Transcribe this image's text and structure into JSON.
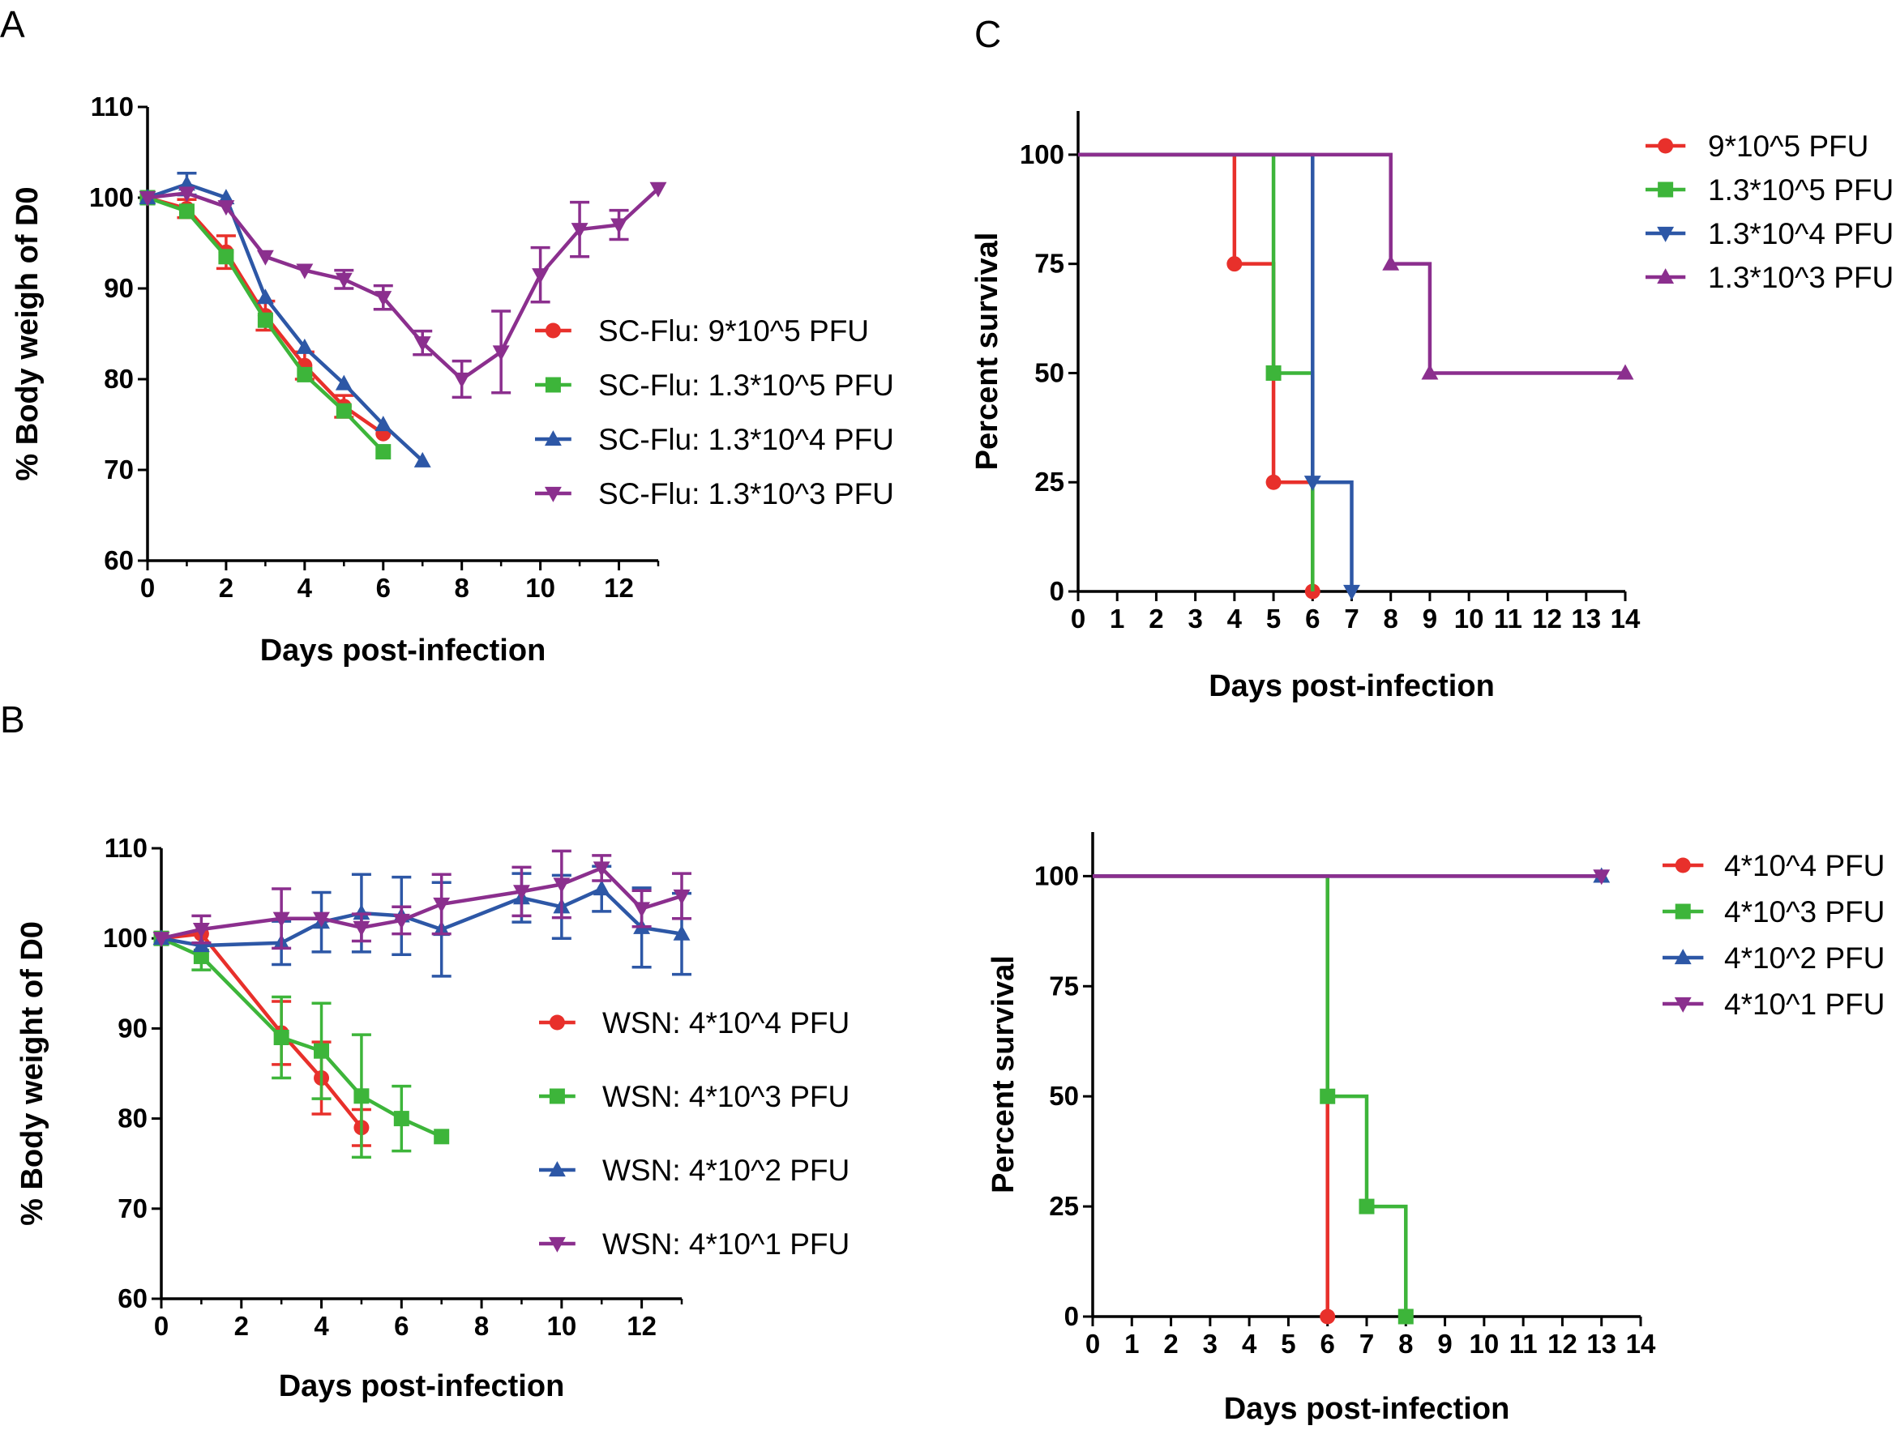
{
  "panel_letters": [
    "A",
    "B",
    "C"
  ],
  "chart_data": [
    {
      "type": "line",
      "xlabel": "Days post-infection",
      "ylabel": "% Body weigh of D0",
      "xlim": [
        0,
        13
      ],
      "ylim": [
        60,
        110
      ],
      "xticks": [
        0,
        2,
        4,
        6,
        8,
        10,
        12
      ],
      "yticks": [
        60,
        70,
        80,
        90,
        100,
        110
      ],
      "legend_position": "right",
      "series": [
        {
          "name": "SC-Flu:  9*10^5 PFU",
          "color": "#e8302b",
          "marker": "circle",
          "x": [
            0,
            1,
            2,
            3,
            4,
            5,
            6
          ],
          "y": [
            100,
            98.8,
            94,
            87,
            81.5,
            77,
            74
          ],
          "err": [
            0,
            1,
            1.8,
            1.6,
            1.5,
            1.2,
            0
          ]
        },
        {
          "name": "SC-Flu:  1.3*10^5 PFU",
          "color": "#3db53a",
          "marker": "square",
          "x": [
            0,
            1,
            2,
            3,
            4,
            5,
            6
          ],
          "y": [
            100,
            98.5,
            93.5,
            86.5,
            80.5,
            76.5,
            72
          ],
          "err": [
            0,
            0,
            0,
            0,
            0,
            0,
            0
          ]
        },
        {
          "name": "SC-Flu:  1.3*10^4 PFU",
          "color": "#2d57a6",
          "marker": "triangle-up",
          "x": [
            0,
            1,
            2,
            3,
            4,
            5,
            6,
            7
          ],
          "y": [
            100,
            101.5,
            100,
            89,
            83.5,
            79.5,
            75,
            71
          ],
          "err": [
            0,
            1.2,
            0,
            0,
            0,
            0,
            0,
            0
          ]
        },
        {
          "name": "SC-Flu:  1.3*10^3 PFU",
          "color": "#8b2f8e",
          "marker": "triangle-down",
          "x": [
            0,
            1,
            2,
            3,
            4,
            5,
            6,
            7,
            8,
            9,
            10,
            11,
            12,
            13
          ],
          "y": [
            100,
            100.5,
            99,
            93.5,
            92,
            91,
            89,
            84,
            80,
            83,
            91.5,
            96.5,
            97,
            101
          ],
          "err": [
            0,
            0,
            0,
            0,
            0,
            1,
            1.3,
            1.3,
            2,
            4.5,
            3,
            3,
            1.6,
            0
          ]
        }
      ]
    },
    {
      "type": "line",
      "xlabel": "Days post-infection",
      "ylabel": "% Body weight of D0",
      "xlim": [
        0,
        13
      ],
      "ylim": [
        60,
        110
      ],
      "xticks": [
        0,
        2,
        4,
        6,
        8,
        10,
        12
      ],
      "yticks": [
        60,
        70,
        80,
        90,
        100,
        110
      ],
      "legend_position": "right",
      "series": [
        {
          "name": "WSN: 4*10^4 PFU",
          "color": "#e8302b",
          "marker": "circle",
          "x": [
            0,
            1,
            3,
            4,
            5
          ],
          "y": [
            100,
            100.5,
            89.5,
            84.5,
            79
          ],
          "err": [
            0,
            0,
            3.5,
            4,
            2
          ]
        },
        {
          "name": "WSN: 4*10^3 PFU",
          "color": "#3db53a",
          "marker": "square",
          "x": [
            0,
            1,
            3,
            4,
            5,
            6,
            7
          ],
          "y": [
            100,
            98,
            89,
            87.5,
            82.5,
            80,
            78
          ],
          "err": [
            0,
            1.5,
            4.5,
            5.3,
            6.8,
            3.6,
            0
          ]
        },
        {
          "name": "WSN: 4*10^2 PFU",
          "color": "#2d57a6",
          "marker": "triangle-up",
          "x": [
            0,
            1,
            3,
            4,
            5,
            6,
            7,
            9,
            10,
            11,
            12,
            13
          ],
          "y": [
            100,
            99.2,
            99.5,
            101.8,
            102.8,
            102.5,
            101,
            104.5,
            103.5,
            105.5,
            101.2,
            100.5
          ],
          "err": [
            0,
            0,
            2.4,
            3.3,
            4.3,
            4.3,
            5.2,
            2.7,
            3.5,
            2.5,
            4.4,
            4.5
          ]
        },
        {
          "name": "WSN: 4*10^1 PFU",
          "color": "#8b2f8e",
          "marker": "triangle-down",
          "x": [
            0,
            1,
            3,
            4,
            5,
            6,
            7,
            9,
            10,
            11,
            12,
            13
          ],
          "y": [
            100,
            101,
            102.2,
            102.2,
            101.2,
            102,
            103.8,
            105.2,
            106,
            107.8,
            103.3,
            104.7
          ],
          "err": [
            0,
            1.5,
            3.3,
            0,
            1.5,
            1.5,
            3.3,
            2.7,
            3.7,
            1.4,
            2,
            2.5
          ]
        }
      ]
    },
    {
      "type": "line",
      "xlabel": "Days post-infection",
      "ylabel": "Percent survival",
      "xlim": [
        0,
        14
      ],
      "ylim": [
        0,
        110
      ],
      "xticks": [
        0,
        1,
        2,
        3,
        4,
        5,
        6,
        7,
        8,
        9,
        10,
        11,
        12,
        13,
        14
      ],
      "yticks": [
        0,
        25,
        50,
        75,
        100
      ],
      "legend_position": "top-right",
      "series": [
        {
          "name": "9*10^5 PFU",
          "color": "#e8302b",
          "marker": "circle",
          "steps_x": [
            0,
            4,
            5,
            6
          ],
          "steps_y": [
            100,
            75,
            25,
            0
          ],
          "marker_x": [
            4,
            5,
            6
          ],
          "marker_y": [
            75,
            25,
            0
          ]
        },
        {
          "name": "1.3*10^5 PFU",
          "color": "#3db53a",
          "marker": "square",
          "steps_x": [
            0,
            5,
            6
          ],
          "steps_y": [
            100,
            50,
            0
          ],
          "marker_x": [
            5
          ],
          "marker_y": [
            50
          ]
        },
        {
          "name": "1.3*10^4 PFU",
          "color": "#2d57a6",
          "marker": "triangle-down",
          "steps_x": [
            0,
            6,
            7
          ],
          "steps_y": [
            100,
            25,
            0
          ],
          "marker_x": [
            6,
            7
          ],
          "marker_y": [
            25,
            0
          ]
        },
        {
          "name": "1.3*10^3 PFU",
          "color": "#8b2f8e",
          "marker": "triangle-up",
          "steps_x": [
            0,
            8,
            9,
            14
          ],
          "steps_y": [
            100,
            75,
            50,
            50
          ],
          "marker_x": [
            8,
            9,
            14
          ],
          "marker_y": [
            75,
            50,
            50
          ]
        }
      ]
    },
    {
      "type": "line",
      "xlabel": "Days post-infection",
      "ylabel": "Percent survival",
      "xlim": [
        0,
        14
      ],
      "ylim": [
        0,
        110
      ],
      "xticks": [
        0,
        1,
        2,
        3,
        4,
        5,
        6,
        7,
        8,
        9,
        10,
        11,
        12,
        13,
        14
      ],
      "yticks": [
        0,
        25,
        50,
        75,
        100
      ],
      "legend_position": "top-right",
      "series": [
        {
          "name": "4*10^4 PFU",
          "color": "#e8302b",
          "marker": "circle",
          "steps_x": [
            0,
            6
          ],
          "steps_y": [
            100,
            0
          ],
          "marker_x": [
            6
          ],
          "marker_y": [
            0
          ]
        },
        {
          "name": "4*10^3 PFU",
          "color": "#3db53a",
          "marker": "square",
          "steps_x": [
            0,
            6,
            7,
            8
          ],
          "steps_y": [
            100,
            50,
            25,
            0
          ],
          "marker_x": [
            6,
            7,
            8
          ],
          "marker_y": [
            50,
            25,
            0
          ]
        },
        {
          "name": "4*10^2 PFU",
          "color": "#2d57a6",
          "marker": "triangle-up",
          "steps_x": [
            0,
            13
          ],
          "steps_y": [
            100,
            100
          ],
          "marker_x": [
            13
          ],
          "marker_y": [
            100
          ]
        },
        {
          "name": "4*10^1 PFU",
          "color": "#8b2f8e",
          "marker": "triangle-down",
          "steps_x": [
            0,
            13
          ],
          "steps_y": [
            100,
            100
          ],
          "marker_x": [
            13
          ],
          "marker_y": [
            100
          ]
        }
      ]
    }
  ]
}
